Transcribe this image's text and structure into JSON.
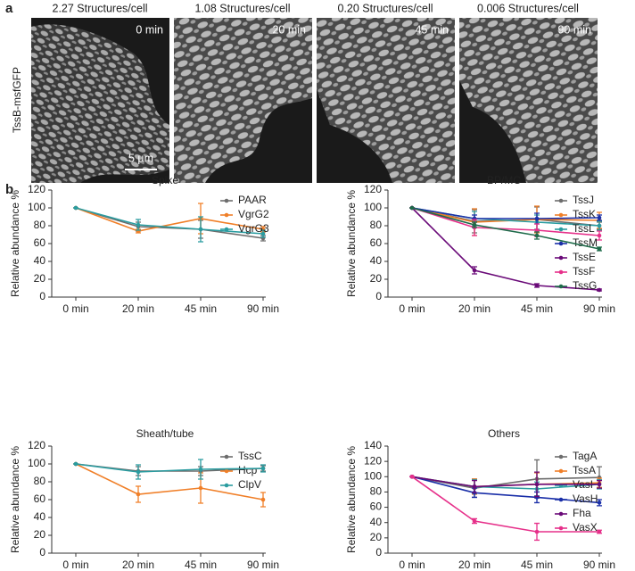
{
  "panel_a": {
    "label": "a",
    "ylabel": "TssB-msfGFP",
    "scale_bar": "5 µm",
    "images": [
      {
        "caption": "2.27 Structures/cell",
        "time": "0 min"
      },
      {
        "caption": "1.08 Structures/cell",
        "time": "20 min"
      },
      {
        "caption": "0.20 Structures/cell",
        "time": "45 min"
      },
      {
        "caption": "0.006 Structures/cell",
        "time": "90 min"
      }
    ]
  },
  "panel_b": {
    "label": "b"
  },
  "chart_data": [
    {
      "type": "line",
      "title": "Spike",
      "ylabel": "Relative abundance %",
      "categories": [
        "0 min",
        "20 min",
        "45 min",
        "90 min"
      ],
      "ylim": [
        0,
        120
      ],
      "yticks": [
        0,
        20,
        40,
        60,
        80,
        100,
        120
      ],
      "series": [
        {
          "name": "PAAR",
          "color": "#6d6d6d",
          "values": [
            100,
            79,
            76,
            66
          ],
          "errors": [
            0,
            5,
            10,
            3
          ]
        },
        {
          "name": "VgrG2",
          "color": "#f07f28",
          "values": [
            100,
            74,
            88,
            76
          ],
          "errors": [
            0,
            2,
            17,
            3
          ]
        },
        {
          "name": "VgrG3",
          "color": "#2a9ca0",
          "values": [
            100,
            81,
            76,
            71
          ],
          "errors": [
            0,
            6,
            14,
            4
          ]
        }
      ]
    },
    {
      "type": "line",
      "title": "BP/MC",
      "ylabel": "Relative abundance %",
      "categories": [
        "0 min",
        "20 min",
        "45 min",
        "90 min"
      ],
      "ylim": [
        0,
        120
      ],
      "yticks": [
        0,
        20,
        40,
        60,
        80,
        100,
        120
      ],
      "series": [
        {
          "name": "TssJ",
          "color": "#6d6d6d",
          "values": [
            100,
            85,
            87,
            80
          ],
          "errors": [
            0,
            13,
            14,
            4
          ]
        },
        {
          "name": "TssK",
          "color": "#f07f28",
          "values": [
            100,
            84,
            87,
            86
          ],
          "errors": [
            0,
            15,
            15,
            9
          ]
        },
        {
          "name": "TssL",
          "color": "#2a9ca0",
          "values": [
            100,
            88,
            84,
            80
          ],
          "errors": [
            0,
            8,
            8,
            5
          ]
        },
        {
          "name": "TssM",
          "color": "#1a2fa8",
          "values": [
            100,
            88,
            88,
            89
          ],
          "errors": [
            0,
            4,
            6,
            3
          ]
        },
        {
          "name": "TssE",
          "color": "#6a0a78",
          "values": [
            100,
            30,
            13,
            8
          ],
          "errors": [
            0,
            4,
            2,
            1
          ]
        },
        {
          "name": "TssF",
          "color": "#e6308a",
          "values": [
            100,
            78,
            75,
            69
          ],
          "errors": [
            0,
            9,
            7,
            5
          ]
        },
        {
          "name": "TssG",
          "color": "#1e6b4a",
          "values": [
            100,
            81,
            69,
            54
          ],
          "errors": [
            0,
            3,
            4,
            2
          ]
        }
      ]
    },
    {
      "type": "line",
      "title": "Sheath/tube",
      "ylabel": "Relative abundance %",
      "categories": [
        "0 min",
        "20 min",
        "45 min",
        "90 min"
      ],
      "ylim": [
        0,
        120
      ],
      "yticks": [
        0,
        20,
        40,
        60,
        80,
        100,
        120
      ],
      "series": [
        {
          "name": "TssC",
          "color": "#6d6d6d",
          "values": [
            100,
            92,
            92,
            95
          ],
          "errors": [
            0,
            5,
            5,
            3
          ]
        },
        {
          "name": "Hcp",
          "color": "#f07f28",
          "values": [
            100,
            66,
            73,
            60
          ],
          "errors": [
            0,
            9,
            17,
            8
          ]
        },
        {
          "name": "ClpV",
          "color": "#2a9ca0",
          "values": [
            100,
            91,
            94,
            95
          ],
          "errors": [
            0,
            8,
            11,
            4
          ]
        }
      ]
    },
    {
      "type": "line",
      "title": "Others",
      "ylabel": "Relative abundance %",
      "categories": [
        "0 min",
        "20 min",
        "45 min",
        "90 min"
      ],
      "ylim": [
        0,
        140
      ],
      "yticks": [
        0,
        20,
        40,
        60,
        80,
        100,
        120,
        140
      ],
      "series": [
        {
          "name": "TagA",
          "color": "#6d6d6d",
          "values": [
            100,
            85,
            97,
            99
          ],
          "errors": [
            0,
            12,
            25,
            14
          ]
        },
        {
          "name": "TssA",
          "color": "#f07f28",
          "values": [
            100,
            87,
            90,
            92
          ],
          "errors": [
            0,
            10,
            15,
            6
          ]
        },
        {
          "name": "VasI",
          "color": "#2a9ca0",
          "values": [
            100,
            87,
            84,
            90
          ],
          "errors": [
            0,
            9,
            9,
            6
          ]
        },
        {
          "name": "VasH",
          "color": "#1a2fa8",
          "values": [
            100,
            79,
            73,
            66
          ],
          "errors": [
            0,
            6,
            7,
            4
          ]
        },
        {
          "name": "Fha",
          "color": "#6a0a78",
          "values": [
            100,
            87,
            90,
            90
          ],
          "errors": [
            0,
            8,
            16,
            5
          ]
        },
        {
          "name": "VasX",
          "color": "#e6308a",
          "values": [
            100,
            42,
            28,
            28
          ],
          "errors": [
            0,
            3,
            11,
            2
          ]
        }
      ]
    }
  ]
}
